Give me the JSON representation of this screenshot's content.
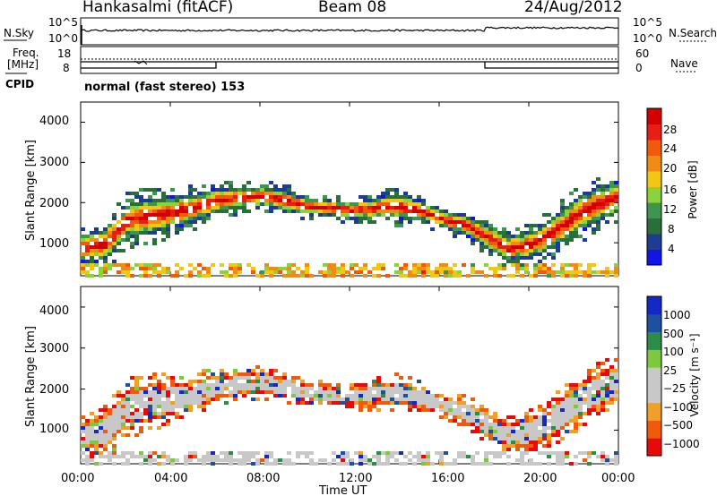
{
  "header": {
    "station": "Hankasalmi (fitACF)",
    "beam": "Beam 08",
    "date": "24/Aug/2012"
  },
  "noise_panel": {
    "left_label": "N.Sky",
    "right_label": "N.Search",
    "left_ticks": [
      "10^5",
      "10^0"
    ],
    "right_ticks": [
      "10^5",
      "10^0"
    ]
  },
  "freq_panel": {
    "left_label_top": "Freq.",
    "left_label_bottom": "[MHz]",
    "right_label": "Nave",
    "left_ticks": [
      "18",
      "8"
    ],
    "right_ticks": [
      "60",
      "0"
    ]
  },
  "cpid": {
    "label": "CPID",
    "text": "normal (fast stereo) 153"
  },
  "axes": {
    "ylabel": "Slant Range [km]",
    "xlabel": "Time UT",
    "yticks": [
      "4000",
      "3000",
      "2000",
      "1000"
    ],
    "xticks": [
      "00:00",
      "04:00",
      "08:00",
      "12:00",
      "16:00",
      "20:00",
      "00:00"
    ]
  },
  "colors": {
    "power": [
      "#1414e6",
      "#1e3c96",
      "#2a6e3c",
      "#3c9650",
      "#8cd23c",
      "#f0c814",
      "#f08c14",
      "#f05a0a",
      "#e61e14",
      "#d20000"
    ],
    "velocity": [
      "#e60a0a",
      "#f05a0a",
      "#f0a028",
      "#c8c8c8",
      "#c8c8c8",
      "#7dc83c",
      "#2d8c46",
      "#1e50a0",
      "#1428c8"
    ]
  },
  "chart_data": [
    {
      "type": "heatmap",
      "title": "Power [dB]",
      "xlabel": "Time UT",
      "ylabel": "Slant Range [km]",
      "x_range": [
        "00:00",
        "24:00"
      ],
      "y_range_km": [
        180,
        4500
      ],
      "colorbar_label": "Power [dB]",
      "colorbar_ticks": [
        "28",
        "24",
        "20",
        "16",
        "12",
        "8",
        "4"
      ],
      "colorbar_range": [
        0,
        30
      ]
    },
    {
      "type": "heatmap",
      "title": "Velocity [m s^-1]",
      "xlabel": "Time UT",
      "ylabel": "Slant Range [km]",
      "x_range": [
        "00:00",
        "24:00"
      ],
      "y_range_km": [
        180,
        4500
      ],
      "colorbar_label": "Velocity [m s⁻¹]",
      "colorbar_ticks": [
        "1000",
        "500",
        "100",
        "25",
        "−25",
        "−100",
        "−500",
        "−1000"
      ],
      "colorbar_range": [
        -1000,
        1000
      ],
      "ground_scatter_color": "#c8c8c8"
    }
  ]
}
